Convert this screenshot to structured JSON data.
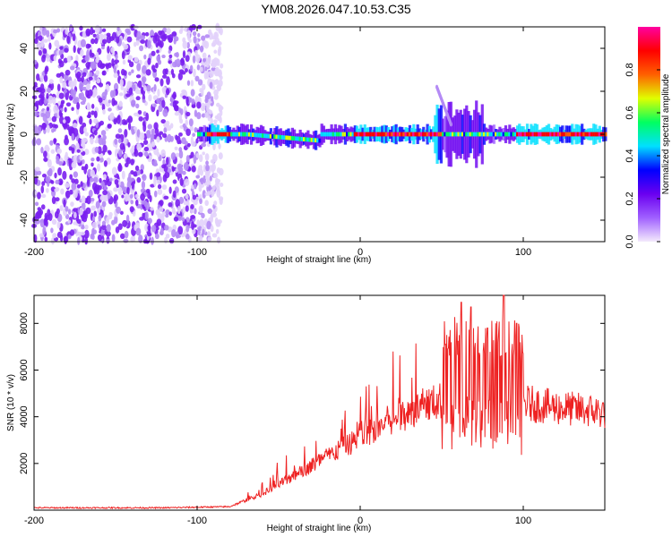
{
  "title": "YM08.2026.047.10.53.C35",
  "chart_data": [
    {
      "type": "heatmap",
      "xlabel": "Height of straight line (km)",
      "ylabel": "Frequency (Hz)",
      "xlim": [
        -200,
        150
      ],
      "ylim": [
        -50,
        50
      ],
      "x_ticks": [
        -200,
        -100,
        0,
        100
      ],
      "y_ticks": [
        -40,
        -20,
        0,
        20,
        40
      ],
      "colorbar": {
        "label": "Normalized spectral amplitude",
        "range": [
          0,
          1
        ],
        "ticks": [
          0.0,
          0.2,
          0.4,
          0.6,
          0.8
        ],
        "colors": [
          "#f4eafc",
          "#a060ff",
          "#6a00f0",
          "#0000ff",
          "#00e0ff",
          "#00ff60",
          "#e0ff00",
          "#ff6000",
          "#ff0000",
          "#ff00a0"
        ]
      },
      "features": {
        "noise_region_x": [
          -200,
          -85
        ],
        "signal_start_x": -100,
        "signal_frequency_hz": 0,
        "strong_band_segments_x": [
          [
            -95,
            -80
          ],
          [
            -5,
            50
          ],
          [
            95,
            150
          ]
        ],
        "burst_region_x": [
          45,
          75
        ]
      }
    },
    {
      "type": "line",
      "xlabel": "Height of straight line (km)",
      "ylabel": "SNR (10 * v/v)",
      "xlim": [
        -200,
        150
      ],
      "ylim": [
        0,
        9200
      ],
      "x_ticks": [
        -200,
        -100,
        0,
        100
      ],
      "y_ticks": [
        2000,
        4000,
        6000,
        8000
      ],
      "line_color": "#ee2222",
      "envelope": {
        "x": [
          -200,
          -120,
          -80,
          -60,
          -40,
          -20,
          0,
          20,
          40,
          50,
          60,
          70,
          80,
          90,
          100,
          120,
          150
        ],
        "y": [
          100,
          100,
          150,
          700,
          1500,
          2300,
          3100,
          3900,
          4500,
          4700,
          4900,
          4900,
          4700,
          4700,
          4600,
          4400,
          4200
        ]
      },
      "peaks": [
        {
          "x": 62,
          "y": 8900
        },
        {
          "x": 68,
          "y": 8700
        },
        {
          "x": 78,
          "y": 7800
        },
        {
          "x": 88,
          "y": 9200
        },
        {
          "x": 96,
          "y": 8000
        }
      ]
    }
  ]
}
